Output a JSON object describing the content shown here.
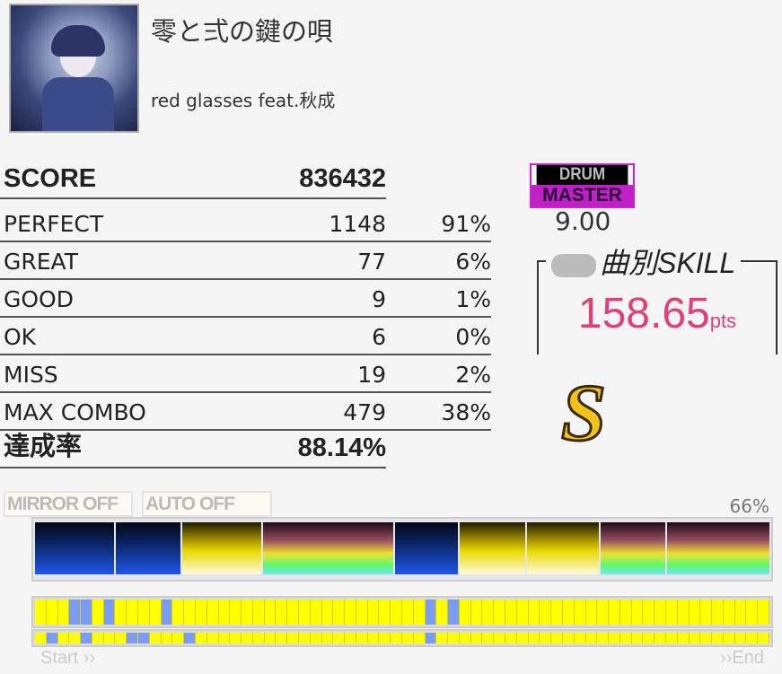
{
  "song": {
    "title": "零と弍の鍵の唄",
    "artist": "red glasses feat.秋成"
  },
  "score": {
    "label": "SCORE",
    "value": "836432"
  },
  "judgements": [
    {
      "label": "PERFECT",
      "count": "1148",
      "pct": "91%"
    },
    {
      "label": "GREAT",
      "count": "77",
      "pct": "6%"
    },
    {
      "label": "GOOD",
      "count": "9",
      "pct": "1%"
    },
    {
      "label": "OK",
      "count": "6",
      "pct": "0%"
    },
    {
      "label": "MISS",
      "count": "19",
      "pct": "2%"
    },
    {
      "label": "MAX COMBO",
      "count": "479",
      "pct": "38%"
    }
  ],
  "achievement": {
    "label": "達成率",
    "value": "88.14%"
  },
  "difficulty": {
    "instrument": "DRUM",
    "level_name": "MASTER",
    "level": "9.00",
    "color": "#c020c8"
  },
  "skill": {
    "title": "曲別SKILL",
    "value": "158.65",
    "unit": "pts",
    "color": "#e0407a"
  },
  "rank": {
    "letter": "S",
    "icon": "s-rank-crown-icon"
  },
  "options": {
    "mirror": "MIRROR OFF",
    "auto": "AUTO OFF"
  },
  "gauge": {
    "percent": "66%",
    "segments": [
      "blue",
      "blue",
      "yellow",
      "rain",
      "blue",
      "yellow",
      "yellow",
      "rain",
      "rain"
    ]
  },
  "timeline": {
    "start": "Start ››",
    "end": "››End",
    "cells": 64,
    "row1_miss_cells": [
      3,
      4,
      6,
      11,
      34,
      36
    ],
    "row2_miss_cells": [
      1,
      4,
      8,
      9,
      13,
      34
    ]
  }
}
